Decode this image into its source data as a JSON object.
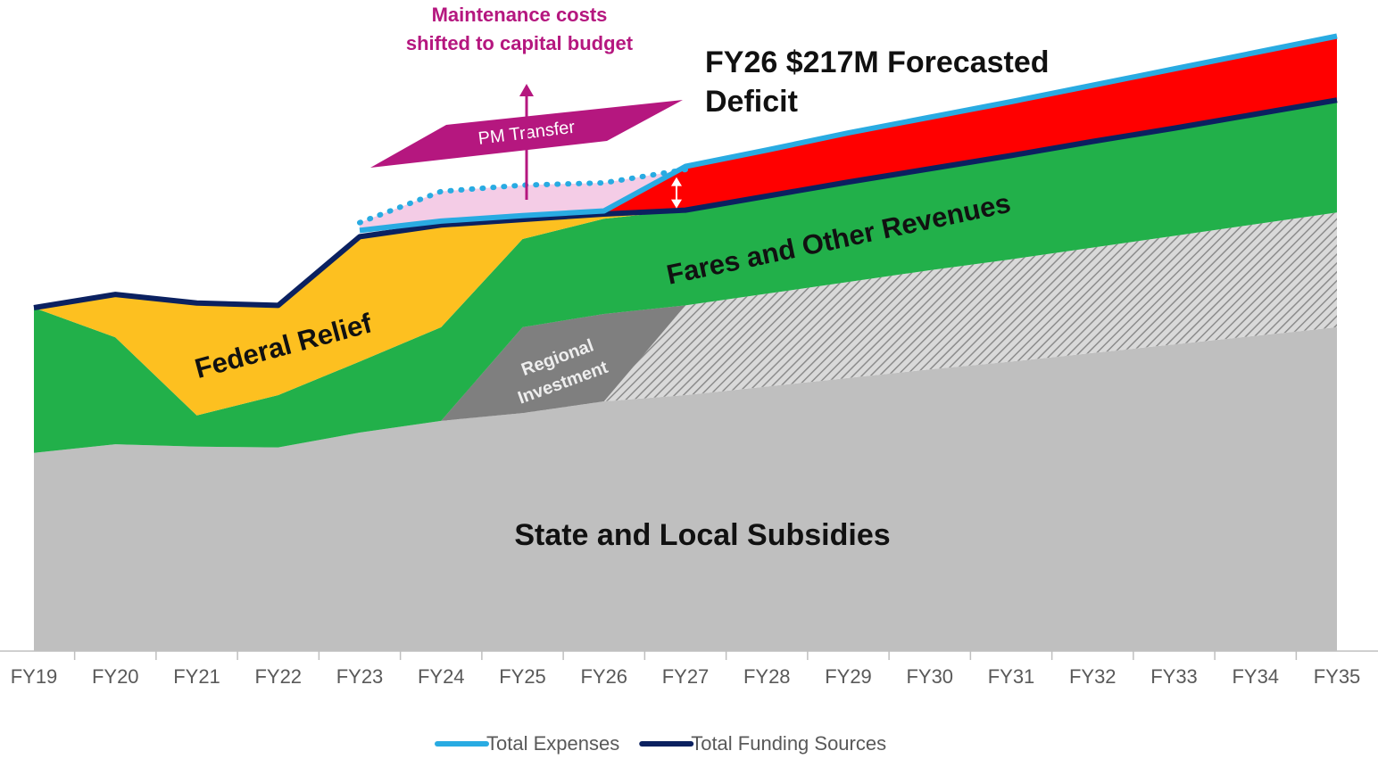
{
  "chart_data": {
    "type": "area",
    "categories": [
      "FY19",
      "FY20",
      "FY21",
      "FY22",
      "FY23",
      "FY24",
      "FY25",
      "FY26",
      "FY27",
      "FY28",
      "FY29",
      "FY30",
      "FY31",
      "FY32",
      "FY33",
      "FY34",
      "FY35"
    ],
    "ylim": [
      0,
      4000
    ],
    "areas": [
      {
        "name": "State and Local Subsidies",
        "color": "#bfbfbf",
        "values": [
          1270,
          1325,
          1310,
          1305,
          1400,
          1475,
          1525,
          1600,
          1640,
          1695,
          1750,
          1805,
          1855,
          1910,
          1965,
          2020,
          2075
        ]
      },
      {
        "name": [
          "Regional",
          "Investment"
        ],
        "color": "#7f7f7f",
        "hatch_from": "FY27",
        "values": [
          null,
          null,
          null,
          null,
          null,
          0,
          550,
          560,
          575,
          595,
          615,
          635,
          655,
          675,
          695,
          715,
          735
        ]
      },
      {
        "name": "Fares and Other Revenues",
        "color": "#22b04a",
        "values": [
          930,
          685,
          200,
          335,
          455,
          600,
          565,
          610,
          610,
          625,
          640,
          650,
          665,
          680,
          690,
          705,
          720
        ]
      },
      {
        "name": "Federal Relief",
        "color": "#fdc020",
        "values": [
          0,
          275,
          720,
          575,
          800,
          655,
          125,
          30,
          0,
          null,
          null,
          null,
          null,
          null,
          null,
          null,
          null
        ]
      },
      {
        "name": "FY26 $217M Forecasted Deficit",
        "color": "#ff0000",
        "values": [
          null,
          null,
          null,
          null,
          null,
          null,
          null,
          0,
          280,
          295,
          315,
          330,
          345,
          360,
          380,
          395,
          410
        ]
      }
    ],
    "lines": [
      {
        "name": "Total Funding Sources",
        "color": "#0b2160",
        "values": [
          2200,
          2285,
          2230,
          2215,
          2655,
          2730,
          2765,
          2800,
          2825,
          2915,
          3005,
          3090,
          3175,
          3265,
          3350,
          3440,
          3530
        ]
      },
      {
        "name": "Total Expenses",
        "color": "#29abe2",
        "values": [
          null,
          null,
          null,
          null,
          2695,
          2755,
          2790,
          2820,
          3105,
          3210,
          3320,
          3420,
          3520,
          3625,
          3730,
          3835,
          3940
        ]
      }
    ],
    "pm_transfer": {
      "label": "PM Transfer",
      "color": "#f4cce6",
      "line_color": "#29abe2",
      "values": [
        null,
        null,
        null,
        null,
        2745,
        2945,
        2985,
        3000,
        3085,
        null,
        null,
        null,
        null,
        null,
        null,
        null,
        null
      ]
    },
    "annotation": [
      "Maintenance costs",
      "shifted to capital budget"
    ],
    "legend_order": [
      1,
      0
    ]
  }
}
